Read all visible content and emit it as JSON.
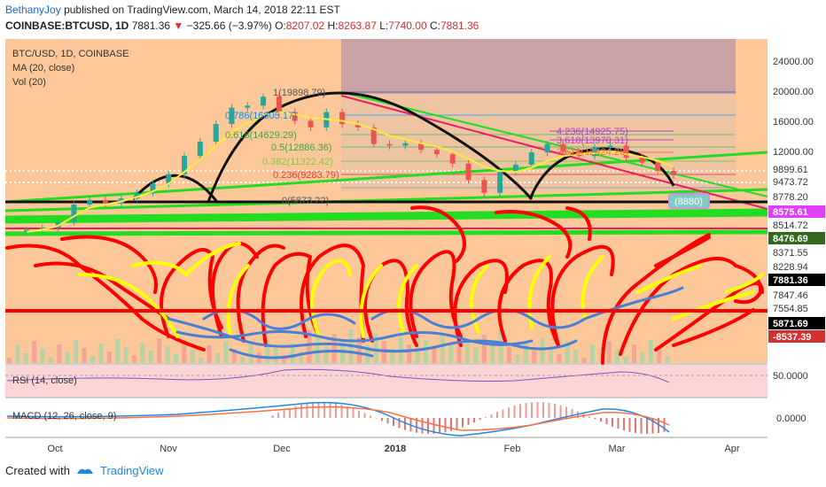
{
  "header": {
    "author": "BethanyJoy",
    "published": "published on TradingView.com, March 14, 2018 22:11 EST",
    "symbol": "COINBASE:BTCUSD, 1D",
    "last": "7881.36",
    "change": "−325.66 (−3.97%)",
    "o_label": "O:",
    "o_val": "8207.02",
    "h_label": "H:",
    "h_val": "8263.87",
    "l_label": "L:",
    "l_val": "7740.00",
    "c_label": "C:",
    "c_val": "7881.36"
  },
  "legend": {
    "title": "BTC/USD, 1D, COINBASE",
    "ma": "MA (20, close)",
    "vol": "Vol (20)"
  },
  "rsi_label": "RSI (14, close)",
  "macd_label": "MACD (12, 26, close, 9)",
  "footer": {
    "created": "Created with",
    "brand": "TradingView"
  },
  "colors": {
    "background": "#fcc899",
    "price_up": "#26a69a",
    "price_down": "#ef5350",
    "ma": "#ffeb3b",
    "drawing_red": "#ff0000",
    "drawing_yellow": "#ffff00",
    "drawing_blue": "#4a7fd6",
    "green_line": "#22dd22",
    "fib_pink": "#e91e63"
  },
  "chart_data": {
    "type": "candlestick",
    "x_axis": {
      "ticks": [
        "Oct",
        "Nov",
        "Dec",
        "2018",
        "Feb",
        "Mar",
        "Apr"
      ]
    },
    "y_axis": {
      "scale": "log",
      "ticks": [
        "24000.00",
        "20000.00",
        "16000.00",
        "12000.00",
        "9899.61",
        "9473.72",
        "8778.20",
        "8575.61",
        "8514.72",
        "8476.69",
        "8371.55",
        "8228.94",
        "7881.36",
        "7847.46",
        "7554.85",
        "5871.69",
        "-8537.39"
      ],
      "highlighted_labels": [
        {
          "value": "8575.61",
          "color": "#e040fb"
        },
        {
          "value": "8476.69",
          "color": "#33691e"
        },
        {
          "value": "7881.36",
          "color": "#000000"
        },
        {
          "value": "5871.69",
          "color": "#000000"
        },
        {
          "value": "-8537.39",
          "color": "#d32f2f"
        }
      ]
    },
    "fib_levels": [
      "1(19898.79)",
      "0.786(16805.17)",
      "0.618(14629.29)",
      "0.5(12886.36)",
      "0.382(11322.42)",
      "0.236(9283.79)",
      "0(5873.22)"
    ],
    "fib_extensions": [
      "4.236(14925.75)",
      "3.618(13970.31)",
      "2.618(12424.28)"
    ],
    "annotation": "(8880)",
    "price_close": [
      4300,
      4400,
      4700,
      5700,
      6000,
      5800,
      6100,
      6500,
      7200,
      8000,
      9800,
      11500,
      14000,
      16800,
      17200,
      19000,
      16000,
      14500,
      13500,
      16000,
      14000,
      13500,
      11200,
      11000,
      11300,
      10500,
      10000,
      9000,
      7500,
      6500,
      8200,
      8900,
      10200,
      11200,
      10300,
      9800,
      10800,
      11000,
      9600,
      9100,
      8300,
      7900
    ],
    "ma": [
      4200,
      4300,
      4500,
      5000,
      5500,
      5700,
      5900,
      6200,
      6600,
      7200,
      8200,
      9400,
      11000,
      12800,
      14200,
      15500,
      16000,
      15600,
      15000,
      14800,
      14500,
      14000,
      13200,
      12300,
      11800,
      11300,
      10900,
      10300,
      9500,
      8700,
      8300,
      8200,
      8600,
      9300,
      9800,
      10000,
      10100,
      10200,
      10000,
      9700,
      9300,
      8700
    ],
    "rsi_range": [
      "0",
      "50.0000",
      "100"
    ],
    "macd_axis": "0.0000"
  }
}
